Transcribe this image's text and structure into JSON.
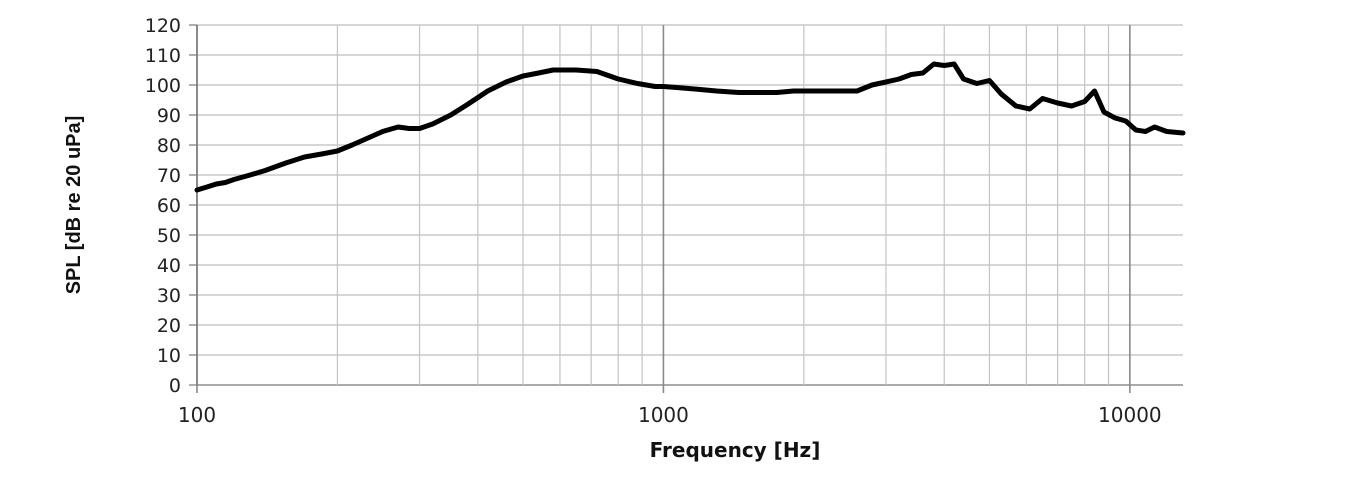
{
  "chart_data": {
    "type": "line",
    "title": "",
    "xlabel": "Frequency [Hz]",
    "ylabel": "SPL [dB re 20 uPa]",
    "x_scale": "log",
    "xlim": [
      100,
      13000
    ],
    "ylim": [
      0,
      120
    ],
    "y_ticks": [
      0,
      10,
      20,
      30,
      40,
      50,
      60,
      70,
      80,
      90,
      100,
      110,
      120
    ],
    "x_ticks": [
      100,
      1000,
      10000
    ],
    "x_tick_labels": [
      "100",
      "1000",
      "10000"
    ],
    "grid": true,
    "legend": "none",
    "line_color": "#000000",
    "series": [
      {
        "x": [
          100,
          105,
          110,
          115,
          120,
          130,
          140,
          155,
          170,
          185,
          200,
          215,
          230,
          250,
          270,
          285,
          300,
          320,
          350,
          380,
          420,
          460,
          500,
          540,
          580,
          650,
          720,
          800,
          880,
          960,
          1000,
          1100,
          1200,
          1300,
          1450,
          1600,
          1750,
          1900,
          2000,
          2200,
          2400,
          2600,
          2800,
          3000,
          3200,
          3400,
          3600,
          3800,
          4000,
          4200,
          4400,
          4700,
          5000,
          5300,
          5700,
          6100,
          6500,
          7000,
          7500,
          8000,
          8400,
          8800,
          9300,
          9800,
          10300,
          10800,
          11300,
          12000,
          13000
        ],
        "y": [
          65,
          66,
          67,
          67.5,
          68.5,
          70,
          71.5,
          74,
          76,
          77,
          78,
          80,
          82,
          84.5,
          86,
          85.5,
          85.5,
          87,
          90,
          93.5,
          98,
          101,
          103,
          104,
          105,
          105,
          104.5,
          102,
          100.5,
          99.5,
          99.5,
          99,
          98.5,
          98,
          97.5,
          97.5,
          97.5,
          98,
          98,
          98,
          98,
          98,
          100,
          101,
          102,
          103.5,
          104,
          107,
          106.5,
          107,
          102,
          100.5,
          101.5,
          97,
          93,
          92,
          95.5,
          94,
          93,
          94.5,
          98,
          91,
          89,
          88,
          85,
          84.5,
          86,
          84.5,
          84
        ]
      }
    ]
  }
}
